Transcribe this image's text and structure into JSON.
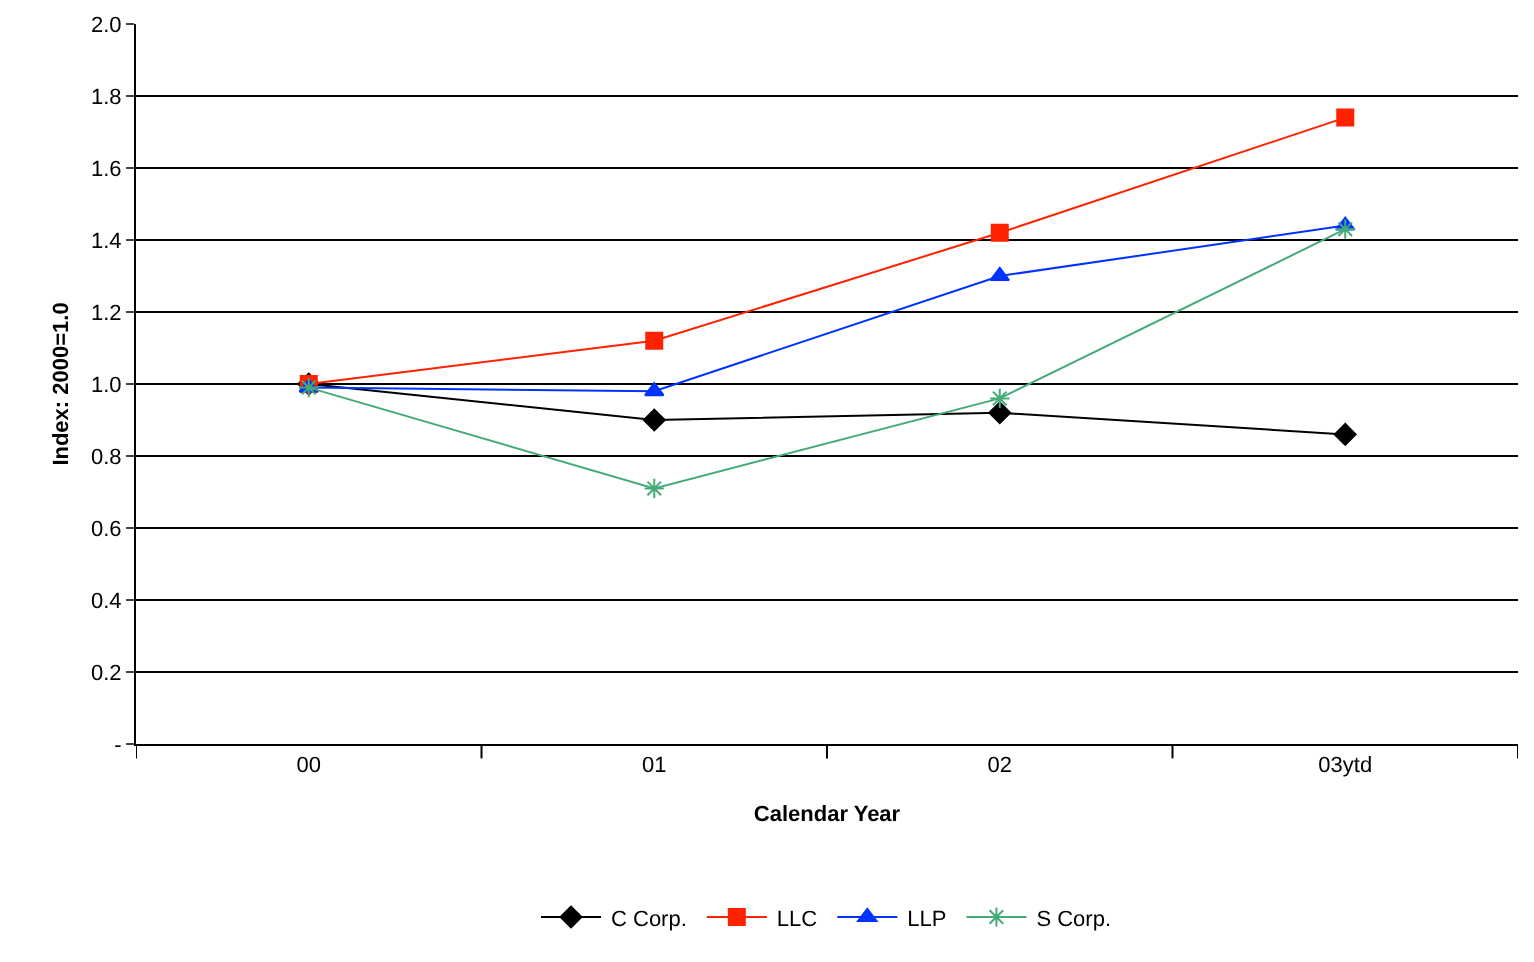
{
  "chart_data": {
    "type": "line",
    "xlabel": "Calendar Year",
    "ylabel": "Index: 2000=1.0",
    "categories": [
      "00",
      "01",
      "02",
      "03ytd"
    ],
    "series": [
      {
        "name": "C Corp.",
        "color": "#000000",
        "marker": "diamond",
        "values": [
          1.0,
          0.9,
          0.92,
          0.86
        ]
      },
      {
        "name": "LLC",
        "color": "#ff2200",
        "marker": "square",
        "values": [
          1.0,
          1.12,
          1.42,
          1.74
        ]
      },
      {
        "name": "LLP",
        "color": "#0033ff",
        "marker": "triangle",
        "values": [
          0.99,
          0.98,
          1.3,
          1.44
        ]
      },
      {
        "name": "S Corp.",
        "color": "#44aa77",
        "marker": "cross",
        "values": [
          0.99,
          0.71,
          0.96,
          1.43
        ]
      }
    ],
    "ylim": [
      0,
      2.0
    ],
    "yticks": [
      {
        "value": 0,
        "label": "-"
      },
      0.2,
      0.4,
      0.6,
      0.8,
      {
        "value": 1,
        "label": "1.0"
      },
      1.2,
      1.4,
      1.6,
      1.8,
      {
        "value": 2,
        "label": "2.0"
      }
    ],
    "grid": "y",
    "legend": "bottom",
    "line_style": "solid"
  }
}
